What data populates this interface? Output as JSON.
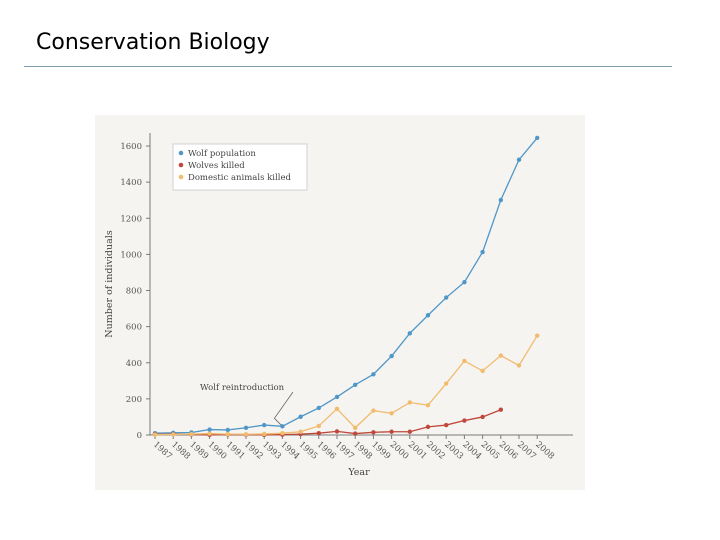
{
  "slide": {
    "title": "Conservation Biology"
  },
  "chart_data": {
    "type": "line",
    "title": "",
    "xlabel": "Year",
    "ylabel": "Number of individuals",
    "ylim": [
      0,
      1650
    ],
    "yticks": [
      0,
      200,
      400,
      600,
      800,
      1000,
      1200,
      1400,
      1600
    ],
    "categories": [
      "1987",
      "1988",
      "1989",
      "1990",
      "1991",
      "1992",
      "1993",
      "1994",
      "1995",
      "1996",
      "1997",
      "1998",
      "1999",
      "2000",
      "2001",
      "2002",
      "2003",
      "2004",
      "2005",
      "2006",
      "2007",
      "2008"
    ],
    "series": [
      {
        "name": "Wolf population",
        "color": "#4f97c8",
        "values": [
          10,
          12,
          14,
          30,
          28,
          40,
          55,
          48,
          101,
          150,
          211,
          278,
          336,
          437,
          563,
          663,
          761,
          846,
          1013,
          1301,
          1524,
          1645
        ]
      },
      {
        "name": "Wolves killed",
        "color": "#c0473b",
        "values": [
          4,
          5,
          3,
          1,
          3,
          2,
          1,
          2,
          5,
          10,
          20,
          8,
          15,
          18,
          18,
          45,
          55,
          80,
          100,
          140,
          null,
          null
        ]
      },
      {
        "name": "Domestic animals killed",
        "color": "#f1bc6e",
        "values": [
          2,
          3,
          5,
          8,
          5,
          4,
          6,
          10,
          18,
          50,
          145,
          40,
          135,
          120,
          180,
          165,
          285,
          410,
          355,
          440,
          385,
          550
        ]
      }
    ],
    "annotations": [
      {
        "text": "Wolf reintroduction",
        "target": "1994"
      }
    ],
    "legend": "top-left"
  }
}
